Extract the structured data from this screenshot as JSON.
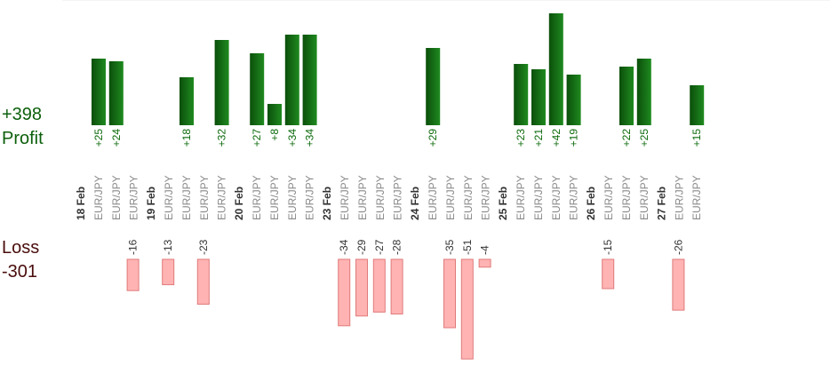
{
  "summary": {
    "profit_total": "+398",
    "profit_label": "Profit",
    "loss_label": "Loss",
    "loss_total": "-301"
  },
  "colors": {
    "profit_bar_dark": "#0b4f0b",
    "profit_bar_light": "#1f8a1f",
    "profit_text": "#0c6a0c",
    "loss_bar": "#ffb3b3",
    "loss_bar_border": "#e07a7a",
    "loss_text": "#333333",
    "axis": "#888888",
    "grid": "#e8e8e8",
    "date_text": "#333333",
    "symbol_text": "#8a8a8a"
  },
  "chart_data": {
    "type": "bar",
    "profit_ylim": [
      0,
      40
    ],
    "loss_ylim": [
      -40,
      0
    ],
    "grid": true,
    "days": [
      {
        "date": "18 Feb",
        "trades": [
          {
            "symbol": "EUR/JPY",
            "value": 25,
            "label": "+25"
          },
          {
            "symbol": "EUR/JPY",
            "value": 24,
            "label": "+24"
          },
          {
            "symbol": "EUR/JPY",
            "value": -16,
            "label": "-16"
          }
        ]
      },
      {
        "date": "19 Feb",
        "trades": [
          {
            "symbol": "EUR/JPY",
            "value": -13,
            "label": "-13"
          },
          {
            "symbol": "EUR/JPY",
            "value": 18,
            "label": "+18"
          },
          {
            "symbol": "EUR/JPY",
            "value": -23,
            "label": "-23"
          },
          {
            "symbol": "EUR/JPY",
            "value": 32,
            "label": "+32"
          }
        ]
      },
      {
        "date": "20 Feb",
        "trades": [
          {
            "symbol": "EUR/JPY",
            "value": 27,
            "label": "+27"
          },
          {
            "symbol": "EUR/JPY",
            "value": 8,
            "label": "+8"
          },
          {
            "symbol": "EUR/JPY",
            "value": 34,
            "label": "+34"
          },
          {
            "symbol": "EUR/JPY",
            "value": 34,
            "label": "+34"
          }
        ]
      },
      {
        "date": "23 Feb",
        "trades": [
          {
            "symbol": "EUR/JPY",
            "value": -34,
            "label": "-34"
          },
          {
            "symbol": "EUR/JPY",
            "value": -29,
            "label": "-29"
          },
          {
            "symbol": "EUR/JPY",
            "value": -27,
            "label": "-27"
          },
          {
            "symbol": "EUR/JPY",
            "value": -28,
            "label": "-28"
          }
        ]
      },
      {
        "date": "24 Feb",
        "trades": [
          {
            "symbol": "EUR/JPY",
            "value": 29,
            "label": "+29"
          },
          {
            "symbol": "EUR/JPY",
            "value": -35,
            "label": "-35"
          },
          {
            "symbol": "EUR/JPY",
            "value": -51,
            "label": "-51"
          },
          {
            "symbol": "EUR/JPY",
            "value": -4,
            "label": "-4"
          }
        ]
      },
      {
        "date": "25 Feb",
        "trades": [
          {
            "symbol": "EUR/JPY",
            "value": 23,
            "label": "+23"
          },
          {
            "symbol": "EUR/JPY",
            "value": 21,
            "label": "+21"
          },
          {
            "symbol": "EUR/JPY",
            "value": 42,
            "label": "+42"
          },
          {
            "symbol": "EUR/JPY",
            "value": 19,
            "label": "+19"
          }
        ]
      },
      {
        "date": "26 Feb",
        "trades": [
          {
            "symbol": "EUR/JPY",
            "value": -15,
            "label": "-15"
          },
          {
            "symbol": "EUR/JPY",
            "value": 22,
            "label": "+22"
          },
          {
            "symbol": "EUR/JPY",
            "value": 25,
            "label": "+25"
          }
        ]
      },
      {
        "date": "27 Feb",
        "trades": [
          {
            "symbol": "EUR/JPY",
            "value": -26,
            "label": "-26"
          },
          {
            "symbol": "EUR/JPY",
            "value": 15,
            "label": "+15"
          }
        ]
      }
    ]
  }
}
